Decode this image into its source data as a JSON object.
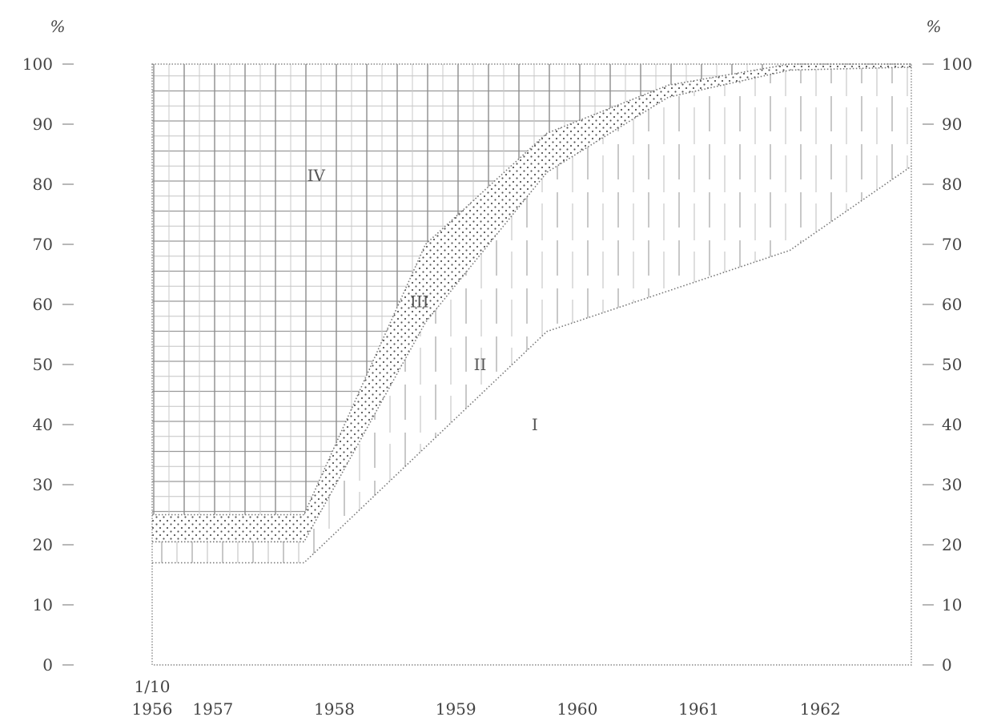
{
  "chart_data": {
    "type": "area",
    "y_unit_left": "%",
    "y_unit_right": "%",
    "yticks": [
      0,
      10,
      20,
      30,
      40,
      50,
      60,
      70,
      80,
      90,
      100
    ],
    "yticks_right": [
      0,
      10,
      20,
      30,
      40,
      50,
      60,
      70,
      80,
      90,
      100
    ],
    "ylim": [
      0,
      100
    ],
    "xlim": [
      1956.75,
      1963.0
    ],
    "xtick_labels": [
      {
        "x": 1956.75,
        "line1": "1/10",
        "line2": "1956"
      },
      {
        "x": 1957.25,
        "line1": "",
        "line2": "1957"
      },
      {
        "x": 1958.25,
        "line1": "",
        "line2": "1958"
      },
      {
        "x": 1959.25,
        "line1": "",
        "line2": "1959"
      },
      {
        "x": 1960.25,
        "line1": "",
        "line2": "1960"
      },
      {
        "x": 1961.25,
        "line1": "",
        "line2": "1961"
      },
      {
        "x": 1962.25,
        "line1": "",
        "line2": "1962"
      }
    ],
    "boundaries": [
      {
        "x": [
          1956.75,
          1958.0,
          1960.0,
          1962.0,
          1963.0
        ],
        "y": [
          17,
          17,
          55.5,
          69,
          83
        ]
      },
      {
        "x": [
          1956.75,
          1958.0,
          1959.0,
          1960.0,
          1961.0,
          1962.0,
          1963.0
        ],
        "y": [
          20.5,
          20.5,
          57,
          82,
          94.5,
          99,
          99.5
        ]
      },
      {
        "x": [
          1956.75,
          1958.0,
          1959.0,
          1960.0,
          1961.0,
          1962.0,
          1963.0
        ],
        "y": [
          25,
          25,
          70,
          88.5,
          96.5,
          100,
          100
        ]
      }
    ],
    "regions": [
      {
        "label": "I",
        "x": 1959.9,
        "y": 40
      },
      {
        "label": "II",
        "x": 1959.45,
        "y": 50
      },
      {
        "label": "III",
        "x": 1958.95,
        "y": 60.5
      },
      {
        "label": "IV",
        "x": 1958.1,
        "y": 81.5
      }
    ]
  }
}
